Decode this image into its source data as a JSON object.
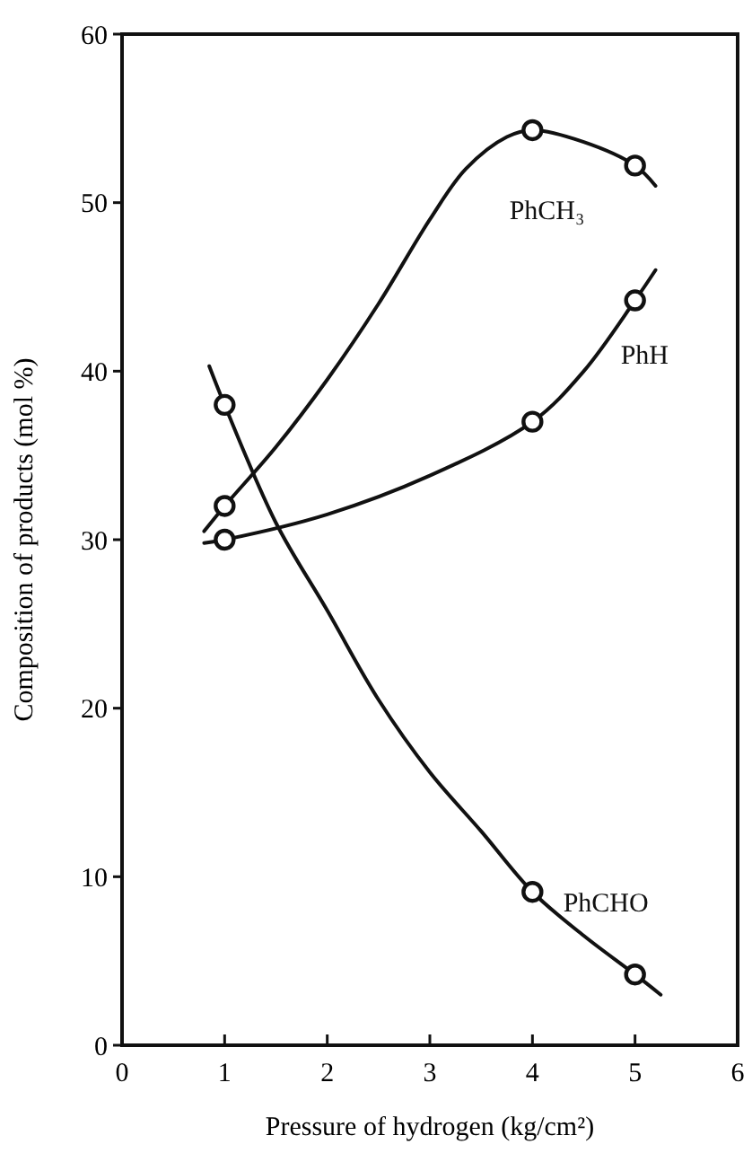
{
  "chart_data": {
    "type": "line",
    "xlabel": "Pressure of hydrogen (kg/cm²)",
    "ylabel": "Composition of products (mol %)",
    "xlim": [
      0,
      6
    ],
    "ylim": [
      0,
      60
    ],
    "xticks": [
      0,
      1,
      2,
      3,
      4,
      5,
      6
    ],
    "yticks": [
      0,
      10,
      20,
      30,
      40,
      50,
      60
    ],
    "grid": false,
    "line_style": "solid",
    "series": [
      {
        "name": "PhCH₃",
        "color": "#111111",
        "x": [
          0.8,
          1,
          1.5,
          2,
          2.5,
          3,
          3.35,
          3.75,
          4,
          4.5,
          5,
          5.2
        ],
        "values": [
          30.5,
          32,
          35.5,
          39.5,
          44,
          49,
          52,
          53.9,
          54.3,
          53.6,
          52.2,
          51
        ]
      },
      {
        "name": "PhH",
        "color": "#111111",
        "x": [
          0.8,
          1,
          2,
          3,
          4,
          4.5,
          5,
          5.2
        ],
        "values": [
          29.8,
          30,
          31.5,
          33.8,
          37,
          40,
          44.2,
          46
        ]
      },
      {
        "name": "PhCHO",
        "color": "#111111",
        "x": [
          0.85,
          1,
          1.5,
          2,
          2.5,
          3,
          3.5,
          4,
          4.5,
          5,
          5.25
        ],
        "values": [
          40.3,
          38,
          31,
          25.8,
          20.5,
          16.2,
          12.7,
          9.1,
          6.5,
          4.2,
          3
        ]
      },
      {
        "type": "scatter",
        "marker": "circle",
        "color": "#111111",
        "x": [
          1,
          4,
          5
        ],
        "values": [
          32,
          54.3,
          52.2
        ]
      },
      {
        "type": "scatter",
        "marker": "circle",
        "color": "#111111",
        "x": [
          1,
          4,
          5
        ],
        "values": [
          30,
          37,
          44.2
        ]
      },
      {
        "type": "scatter",
        "marker": "circle",
        "color": "#111111",
        "x": [
          1,
          4,
          5
        ],
        "values": [
          38,
          9.1,
          4.2
        ]
      }
    ]
  }
}
